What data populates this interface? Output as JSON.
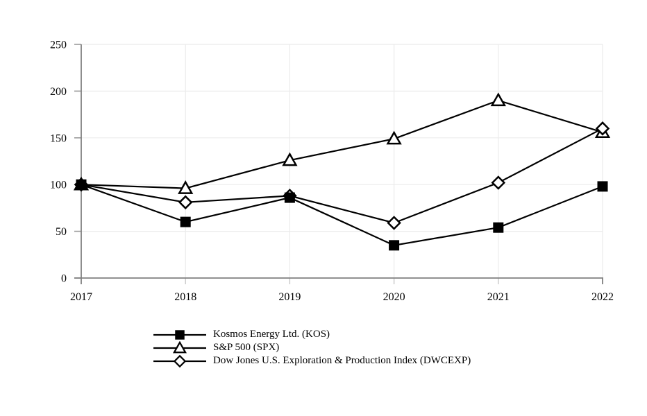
{
  "chart_data": {
    "type": "line",
    "title": "",
    "xlabel": "",
    "ylabel": "",
    "categories": [
      "2017",
      "2018",
      "2019",
      "2020",
      "2021",
      "2022"
    ],
    "series": [
      {
        "name": "Kosmos Energy Ltd. (KOS)",
        "marker": "square",
        "marker_fill": "filled",
        "marker_z": 3,
        "values": [
          100,
          60,
          86,
          35,
          54,
          98
        ]
      },
      {
        "name": "S&P 500 (SPX)",
        "marker": "triangle",
        "marker_fill": "open",
        "marker_z": 1,
        "values": [
          100,
          96,
          126,
          149,
          190,
          156
        ]
      },
      {
        "name": "Dow Jones U.S. Exploration & Production Index (DWCEXP)",
        "marker": "diamond",
        "marker_fill": "open",
        "marker_z": 2,
        "values": [
          100,
          81,
          88,
          59,
          102,
          160
        ]
      }
    ],
    "ylim": [
      0,
      250
    ],
    "yticks": [
      0,
      50,
      100,
      150,
      200,
      250
    ],
    "grid": true,
    "legend_position": "bottom-left",
    "colors": {
      "series": "#000000",
      "axis": "#808080",
      "tick": "#999999",
      "minor_x_tick": "#c8c8c8",
      "gridline": "#ebebeb",
      "background": "#ffffff",
      "text": "#000000"
    }
  }
}
